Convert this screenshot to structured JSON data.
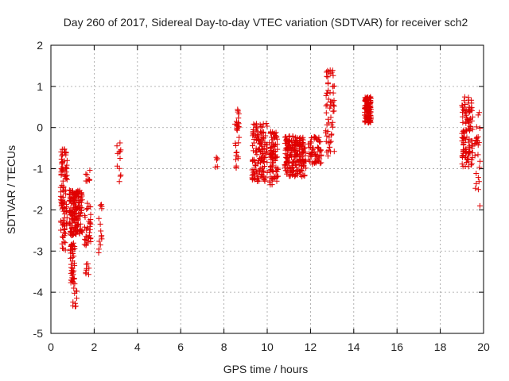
{
  "chart_data": {
    "type": "scatter",
    "title": "Day 260 of 2017, Sidereal Day-to-day VTEC variation (SDTVAR) for receiver sch2",
    "xlabel": "GPS time / hours",
    "ylabel": "SDTVAR / TECUs",
    "xlim": [
      0,
      20
    ],
    "ylim": [
      -5,
      2
    ],
    "xticks": [
      0,
      2,
      4,
      6,
      8,
      10,
      12,
      14,
      16,
      18,
      20
    ],
    "yticks": [
      -5,
      -4,
      -3,
      -2,
      -1,
      0,
      1,
      2
    ],
    "grid": true,
    "marker": "+",
    "color": "#e00000",
    "clusters": [
      {
        "x_range": [
          0.45,
          0.75
        ],
        "y_range": [
          -2.5,
          -0.5
        ],
        "count": 90
      },
      {
        "x_range": [
          0.5,
          0.7
        ],
        "y_range": [
          -3.0,
          -2.4
        ],
        "count": 12
      },
      {
        "x_range": [
          0.85,
          1.45
        ],
        "y_range": [
          -2.6,
          -1.5
        ],
        "count": 160
      },
      {
        "x_range": [
          0.9,
          1.1
        ],
        "y_range": [
          -3.8,
          -2.6
        ],
        "count": 45
      },
      {
        "x_range": [
          1.0,
          1.2
        ],
        "y_range": [
          -4.35,
          -3.9
        ],
        "count": 10
      },
      {
        "x_range": [
          1.55,
          1.85
        ],
        "y_range": [
          -2.9,
          -1.8
        ],
        "count": 35
      },
      {
        "x_range": [
          1.6,
          1.8
        ],
        "y_range": [
          -1.3,
          -1.0
        ],
        "count": 8
      },
      {
        "x_range": [
          1.6,
          1.8
        ],
        "y_range": [
          -3.6,
          -3.3
        ],
        "count": 8
      },
      {
        "x_range": [
          2.2,
          2.4
        ],
        "y_range": [
          -3.1,
          -1.8
        ],
        "count": 14
      },
      {
        "x_range": [
          3.05,
          3.25
        ],
        "y_range": [
          -1.65,
          -0.2
        ],
        "count": 12
      },
      {
        "x_range": [
          7.6,
          7.7
        ],
        "y_range": [
          -1.2,
          -0.5
        ],
        "count": 5
      },
      {
        "x_range": [
          8.5,
          8.7
        ],
        "y_range": [
          -1.1,
          0.45
        ],
        "count": 30
      },
      {
        "x_range": [
          9.3,
          10.0
        ],
        "y_range": [
          -1.35,
          0.1
        ],
        "count": 140
      },
      {
        "x_range": [
          10.1,
          10.5
        ],
        "y_range": [
          -1.4,
          -0.1
        ],
        "count": 90
      },
      {
        "x_range": [
          10.8,
          11.8
        ],
        "y_range": [
          -1.2,
          -0.2
        ],
        "count": 200
      },
      {
        "x_range": [
          11.9,
          12.5
        ],
        "y_range": [
          -0.9,
          -0.2
        ],
        "count": 60
      },
      {
        "x_range": [
          12.7,
          13.1
        ],
        "y_range": [
          -0.7,
          1.4
        ],
        "count": 60
      },
      {
        "x_range": [
          14.5,
          14.8
        ],
        "y_range": [
          0.1,
          0.75
        ],
        "count": 110
      },
      {
        "x_range": [
          19.0,
          19.5
        ],
        "y_range": [
          -0.95,
          0.75
        ],
        "count": 110
      },
      {
        "x_range": [
          19.6,
          19.85
        ],
        "y_range": [
          -2.05,
          0.5
        ],
        "count": 25
      }
    ]
  }
}
